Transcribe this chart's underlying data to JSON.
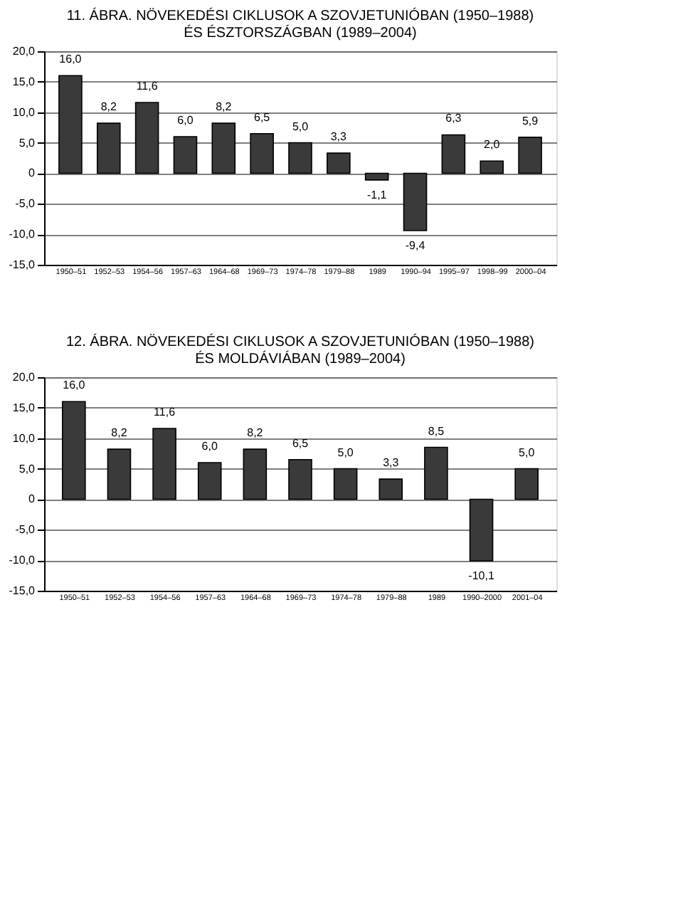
{
  "chart_data": [
    {
      "type": "bar",
      "title": "11. ÁBRA. NÖVEKEDÉSI CIKLUSOK A SZOVJETUNIÓBAN (1950–1988)\nÉS ÉSZTORSZÁGBAN (1989–2004)",
      "categories": [
        "1950–51",
        "1952–53",
        "1954–56",
        "1957–63",
        "1964–68",
        "1969–73",
        "1974–78",
        "1979–88",
        "1989",
        "1990–94",
        "1995–97",
        "1998–99",
        "2000–04"
      ],
      "values": [
        16.0,
        8.2,
        11.6,
        6.0,
        8.2,
        6.5,
        5.0,
        3.3,
        -1.1,
        -9.4,
        6.3,
        2.0,
        5.9
      ],
      "value_labels": [
        "16,0",
        "8,2",
        "11,6",
        "6,0",
        "8,2",
        "6,5",
        "5,0",
        "3,3",
        "-1,1",
        "-9,4",
        "6,3",
        "2,0",
        "5,9"
      ],
      "color": "#3a3a3a",
      "ylim": [
        -15,
        20
      ],
      "yticks": [
        {
          "value": -15,
          "label": "-15,0"
        },
        {
          "value": -10,
          "label": "-10,0"
        },
        {
          "value": -5,
          "label": "-5,0"
        },
        {
          "value": 0,
          "label": "0"
        },
        {
          "value": 5,
          "label": "5,0"
        },
        {
          "value": 10,
          "label": "10,0"
        },
        {
          "value": 15,
          "label": "15,0"
        },
        {
          "value": 20,
          "label": "20,0"
        }
      ],
      "grid": "y"
    },
    {
      "type": "bar",
      "title": "12. ÁBRA. NÖVEKEDÉSI CIKLUSOK A SZOVJETUNIÓBAN (1950–1988)\nÉS MOLDÁVIÁBAN (1989–2004)",
      "categories": [
        "1950–51",
        "1952–53",
        "1954–56",
        "1957–63",
        "1964–68",
        "1969–73",
        "1974–78",
        "1979–88",
        "1989",
        "1990–2000",
        "2001–04"
      ],
      "values": [
        16.0,
        8.2,
        11.6,
        6.0,
        8.2,
        6.5,
        5.0,
        3.3,
        8.5,
        -10.1,
        5.0
      ],
      "value_labels": [
        "16,0",
        "8,2",
        "11,6",
        "6,0",
        "8,2",
        "6,5",
        "5,0",
        "3,3",
        "8,5",
        "-10,1",
        "5,0"
      ],
      "color": "#3a3a3a",
      "ylim": [
        -15,
        20
      ],
      "yticks": [
        {
          "value": -15,
          "label": "-15,0"
        },
        {
          "value": -10,
          "label": "-10,0"
        },
        {
          "value": -5,
          "label": "-5,0"
        },
        {
          "value": 0,
          "label": "0"
        },
        {
          "value": 5,
          "label": "5,0"
        },
        {
          "value": 10,
          "label": "10,0"
        },
        {
          "value": 15,
          "label": "15,0"
        },
        {
          "value": 20,
          "label": "20,0"
        }
      ],
      "grid": "y"
    }
  ]
}
